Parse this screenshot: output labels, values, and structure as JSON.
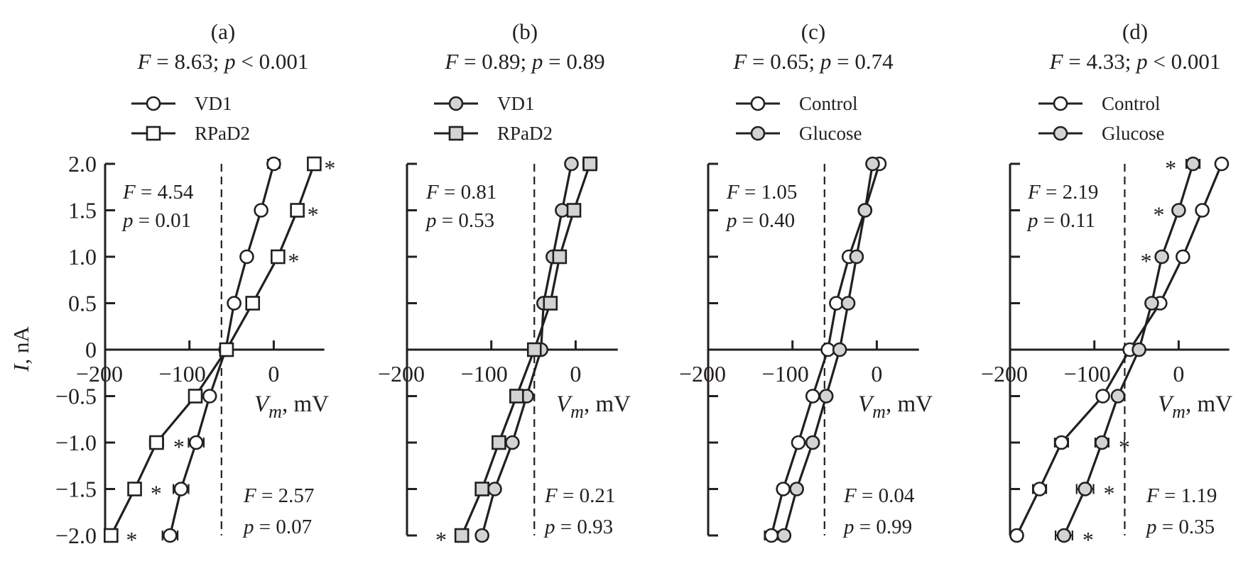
{
  "y_axis_label": {
    "var": "I",
    "unit": ", nA"
  },
  "x_axis_label": {
    "var": "V",
    "sub": "m",
    "unit": ", mV"
  },
  "colors": {
    "ink": "#231f20",
    "open_fill": "#ffffff",
    "grey_fill": "#d1d3d4"
  },
  "chart_data": [
    {
      "type": "line",
      "panel": "(a)",
      "stats": {
        "F": "8.63",
        "p_op": "<",
        "p": "0.001"
      },
      "inset_top": {
        "F": "4.54",
        "p": "0.01"
      },
      "inset_bottom": {
        "F": "2.57",
        "p": "0.07"
      },
      "xlim": [
        -200,
        60
      ],
      "ylim": [
        -2.0,
        2.0
      ],
      "x_ticks": [
        "-200",
        "-100",
        "0"
      ],
      "x_tick_values": [
        -200,
        -100,
        0
      ],
      "y_ticks": [
        "2.0",
        "1.5",
        "1.0",
        "0.5",
        "0",
        "-0.5",
        "-1.0",
        "-1.5",
        "-2.0"
      ],
      "reference_line_x": -62,
      "y": [
        2.0,
        1.5,
        1.0,
        0.5,
        0,
        -0.5,
        -1.0,
        -1.5,
        -2.0
      ],
      "series": [
        {
          "name": "VD1",
          "marker": "circle",
          "fill": "open",
          "x": [
            0,
            -15,
            -32,
            -47,
            -57,
            -76,
            -92,
            -110,
            -123
          ],
          "xerr": [
            7,
            5,
            4,
            5,
            0,
            5,
            9,
            9,
            9
          ]
        },
        {
          "name": "RPaD2",
          "marker": "square",
          "fill": "open",
          "x": [
            48,
            28,
            5,
            -25,
            -56,
            -93,
            -139,
            -165,
            -193
          ],
          "xerr": [
            0,
            0,
            0,
            0,
            0,
            5,
            8,
            7,
            6
          ]
        }
      ],
      "significance": [
        {
          "series": 1,
          "y": 2.0,
          "side": "right",
          "label": "*"
        },
        {
          "series": 1,
          "y": 1.5,
          "side": "right",
          "label": "*"
        },
        {
          "series": 1,
          "y": 1.0,
          "side": "right",
          "label": "*"
        },
        {
          "series": 1,
          "y": -1.0,
          "side": "right",
          "label": "*"
        },
        {
          "series": 1,
          "y": -1.5,
          "side": "right",
          "label": "*"
        },
        {
          "series": 1,
          "y": -2.0,
          "side": "right",
          "label": "*"
        }
      ]
    },
    {
      "type": "line",
      "panel": "(b)",
      "stats": {
        "F": "0.89",
        "p_op": "=",
        "p": "0.89"
      },
      "inset_top": {
        "F": "0.81",
        "p": "0.53"
      },
      "inset_bottom": {
        "F": "0.21",
        "p": "0.93"
      },
      "xlim": [
        -200,
        50
      ],
      "ylim": [
        -2.0,
        2.0
      ],
      "x_ticks": [
        "-200",
        "-100",
        "0"
      ],
      "x_tick_values": [
        -200,
        -100,
        0
      ],
      "reference_line_x": -49,
      "y": [
        2.0,
        1.5,
        1.0,
        0.5,
        0,
        -0.5,
        -1.0,
        -1.5,
        -2.0
      ],
      "series": [
        {
          "name": "VD1",
          "marker": "circle",
          "fill": "grey",
          "x": [
            -5,
            -16,
            -27,
            -38,
            -41,
            -58,
            -75,
            -96,
            -111
          ],
          "xerr": [
            4,
            0,
            0,
            0,
            0,
            0,
            0,
            0,
            6
          ]
        },
        {
          "name": "RPaD2",
          "marker": "square",
          "fill": "grey",
          "x": [
            17,
            -2,
            -19,
            -30,
            -49,
            -70,
            -91,
            -111,
            -135
          ],
          "xerr": [
            8,
            6,
            0,
            0,
            0,
            6,
            6,
            7,
            6
          ]
        }
      ],
      "significance": [
        {
          "series": 1,
          "y": -2.0,
          "side": "left",
          "label": "*"
        }
      ]
    },
    {
      "type": "line",
      "panel": "(c)",
      "stats": {
        "F": "0.65",
        "p_op": "=",
        "p": "0.74"
      },
      "inset_top": {
        "F": "1.05",
        "p": "0.40"
      },
      "inset_bottom": {
        "F": "0.04",
        "p": "0.99"
      },
      "xlim": [
        -200,
        50
      ],
      "ylim": [
        -2.0,
        2.0
      ],
      "x_ticks": [
        "-200",
        "-100",
        "0"
      ],
      "x_tick_values": [
        -200,
        -100,
        0
      ],
      "reference_line_x": -62,
      "y": [
        2.0,
        1.5,
        1.0,
        0.5,
        0,
        -0.5,
        -1.0,
        -1.5,
        -2.0
      ],
      "series": [
        {
          "name": "Control",
          "marker": "circle",
          "fill": "open",
          "x": [
            3,
            -14,
            -33,
            -48,
            -58,
            -76,
            -93,
            -111,
            -125
          ],
          "xerr": [
            6,
            0,
            0,
            0,
            0,
            5,
            5,
            6,
            8
          ]
        },
        {
          "name": "Glucose",
          "marker": "circle",
          "fill": "grey",
          "x": [
            -5,
            -14,
            -24,
            -34,
            -44,
            -60,
            -76,
            -95,
            -110
          ],
          "xerr": [
            4,
            0,
            0,
            0,
            0,
            4,
            4,
            6,
            6
          ]
        }
      ],
      "significance": []
    },
    {
      "type": "line",
      "panel": "(d)",
      "stats": {
        "F": "4.33",
        "p_op": "<",
        "p": "0.001"
      },
      "inset_top": {
        "F": "2.19",
        "p": "0.11"
      },
      "inset_bottom": {
        "F": "1.19",
        "p": "0.35"
      },
      "xlim": [
        -200,
        60
      ],
      "ylim": [
        -2.0,
        2.0
      ],
      "x_ticks": [
        "-200",
        "-100",
        "0"
      ],
      "x_tick_values": [
        -200,
        -100,
        0
      ],
      "reference_line_x": -64,
      "y": [
        2.0,
        1.5,
        1.0,
        0.5,
        0,
        -0.5,
        -1.0,
        -1.5,
        -2.0
      ],
      "series": [
        {
          "name": "Control",
          "marker": "circle",
          "fill": "open",
          "x": [
            51,
            28,
            5,
            -22,
            -58,
            -90,
            -139,
            -165,
            -192
          ],
          "xerr": [
            0,
            0,
            0,
            0,
            0,
            0,
            8,
            8,
            6
          ]
        },
        {
          "name": "Glucose",
          "marker": "circle",
          "fill": "grey",
          "x": [
            17,
            0,
            -20,
            -32,
            -47,
            -72,
            -91,
            -111,
            -136
          ],
          "xerr": [
            8,
            5,
            0,
            0,
            0,
            0,
            8,
            10,
            10
          ]
        }
      ],
      "significance": [
        {
          "series": 1,
          "y": 2.0,
          "side": "left",
          "label": "*"
        },
        {
          "series": 1,
          "y": 1.5,
          "side": "left",
          "label": "*"
        },
        {
          "series": 1,
          "y": 1.0,
          "side": "left",
          "label": "*"
        },
        {
          "series": 1,
          "y": -1.0,
          "side": "right",
          "label": "*"
        },
        {
          "series": 1,
          "y": -1.5,
          "side": "right",
          "label": "*"
        },
        {
          "series": 1,
          "y": -2.0,
          "side": "right",
          "label": "*"
        }
      ]
    }
  ]
}
